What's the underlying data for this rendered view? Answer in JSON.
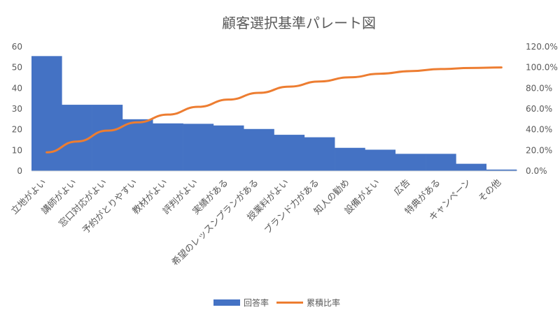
{
  "chart_data": {
    "type": "bar",
    "title": "顧客選択基準パレート図",
    "categories": [
      "立地がよい",
      "講師がよい",
      "窓口対応がよい",
      "予約がとりやすい",
      "教材がよい",
      "評判がよい",
      "実績がある",
      "希望のレッスンプランがある",
      "授業料がよい",
      "ブランド力がある",
      "知人の勧め",
      "設備がよい",
      "広告",
      "特典がある",
      "キャンペーン",
      "その他"
    ],
    "series": [
      {
        "name": "回答率",
        "type": "bar",
        "axis": "left",
        "color": "#4472C4",
        "values": [
          55.5,
          32,
          32,
          25,
          23,
          22.8,
          22,
          20.3,
          17.5,
          16.3,
          11.2,
          10.3,
          8.3,
          8.3,
          3.5,
          0.7
        ]
      },
      {
        "name": "累積比率",
        "type": "line",
        "axis": "right",
        "color": "#ED7D31",
        "values": [
          0.18,
          0.285,
          0.39,
          0.47,
          0.545,
          0.62,
          0.69,
          0.755,
          0.815,
          0.865,
          0.905,
          0.94,
          0.965,
          0.985,
          0.995,
          1.0
        ]
      }
    ],
    "y_left": {
      "min": 0,
      "max": 60,
      "ticks": [
        "0",
        "10",
        "20",
        "30",
        "40",
        "50",
        "60"
      ]
    },
    "y_right": {
      "min": 0,
      "max": 1.2,
      "ticks": [
        "0.0%",
        "20.0%",
        "40.0%",
        "60.0%",
        "80.0%",
        "100.0%",
        "120.0%"
      ]
    },
    "grid": false,
    "legend_position": "bottom"
  }
}
